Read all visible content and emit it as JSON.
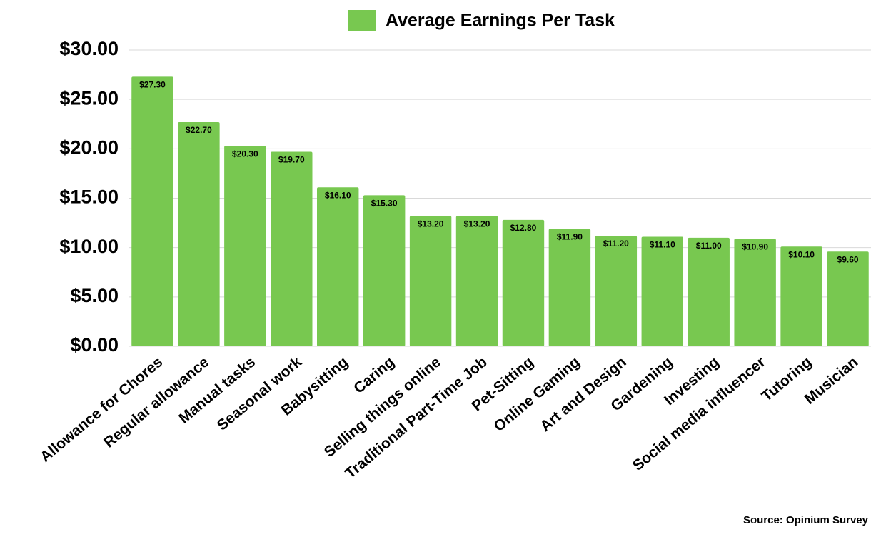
{
  "chart_data": {
    "type": "bar",
    "legend": "Average Earnings Per Task",
    "source": "Source: Opinium Survey",
    "color": "#78c850",
    "categories": [
      "Allowance for Chores",
      "Regular allowance",
      "Manual tasks",
      "Seasonal work",
      "Babysitting",
      "Caring",
      "Selling things online",
      "Traditional Part-Time Job",
      "Pet-Sitting",
      "Online Gaming",
      "Art and Design",
      "Gardening",
      "Investing",
      "Social media influencer",
      "Tutoring",
      "Musician"
    ],
    "values": [
      27.3,
      22.7,
      20.3,
      19.7,
      16.1,
      15.3,
      13.2,
      13.2,
      12.8,
      11.9,
      11.2,
      11.1,
      11.0,
      10.9,
      10.1,
      9.6
    ],
    "value_labels": [
      "$27.30",
      "$22.70",
      "$20.30",
      "$19.70",
      "$16.10",
      "$15.30",
      "$13.20",
      "$13.20",
      "$12.80",
      "$11.90",
      "$11.20",
      "$11.10",
      "$11.00",
      "$10.90",
      "$10.10",
      "$9.60"
    ],
    "ylim": [
      0,
      30
    ],
    "yticks": [
      {
        "value": 0,
        "label": "$0.00"
      },
      {
        "value": 5,
        "label": "$5.00"
      },
      {
        "value": 10,
        "label": "$10.00"
      },
      {
        "value": 15,
        "label": "$15.00"
      },
      {
        "value": 20,
        "label": "$20.00"
      },
      {
        "value": 25,
        "label": "$25.00"
      },
      {
        "value": 30,
        "label": "$30.00"
      }
    ],
    "grid": true
  }
}
